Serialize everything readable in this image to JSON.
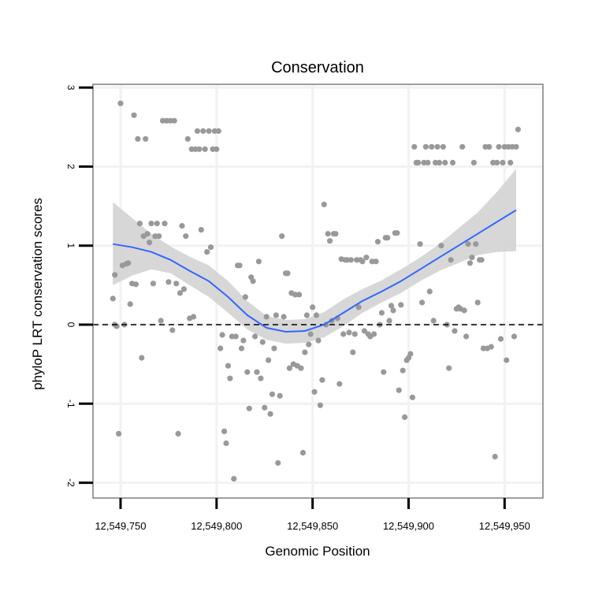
{
  "chart_data": {
    "type": "scatter",
    "title": "Conservation",
    "xlabel": "Genomic Position",
    "ylabel": "phyloP LRT conservation scores",
    "xlim": [
      12549743,
      12549960
    ],
    "ylim": [
      -2.18,
      3.0
    ],
    "xticks": [
      12549750,
      12549800,
      12549850,
      12549900,
      12549950
    ],
    "xtick_labels": [
      "12,549,750",
      "12,549,800",
      "12,549,850",
      "12,549,900",
      "12,549,950"
    ],
    "yticks": [
      -2,
      -1,
      0,
      1,
      2,
      3
    ],
    "ytick_labels": [
      "-2",
      "-1",
      "0",
      "1",
      "2",
      "3"
    ],
    "reference_line": {
      "y": 0,
      "style": "dashed"
    },
    "colors": {
      "points": "#999999",
      "smooth": "#3366ff",
      "band": "#d3d3d3",
      "grid": "#f2f2f2",
      "frame": "#7f7f7f"
    },
    "points": [
      [
        12549746,
        0.33
      ],
      [
        12549747,
        0.63
      ],
      [
        12549747,
        0.0
      ],
      [
        12549748,
        -0.02
      ],
      [
        12549749,
        -1.38
      ],
      [
        12549750,
        2.8
      ],
      [
        12549751,
        0.75
      ],
      [
        12549752,
        0.0
      ],
      [
        12549753,
        0.77
      ],
      [
        12549754,
        0.78
      ],
      [
        12549755,
        0.26
      ],
      [
        12549756,
        0.52
      ],
      [
        12549757,
        2.65
      ],
      [
        12549758,
        0.51
      ],
      [
        12549759,
        2.35
      ],
      [
        12549760,
        1.28
      ],
      [
        12549761,
        -0.42
      ],
      [
        12549762,
        1.12
      ],
      [
        12549763,
        2.35
      ],
      [
        12549764,
        1.15
      ],
      [
        12549765,
        1.04
      ],
      [
        12549766,
        1.28
      ],
      [
        12549767,
        0.52
      ],
      [
        12549768,
        1.12
      ],
      [
        12549769,
        1.28
      ],
      [
        12549770,
        1.12
      ],
      [
        12549771,
        0.05
      ],
      [
        12549772,
        2.58
      ],
      [
        12549773,
        1.28
      ],
      [
        12549774,
        2.58
      ],
      [
        12549775,
        0.54
      ],
      [
        12549776,
        2.58
      ],
      [
        12549777,
        -0.07
      ],
      [
        12549778,
        2.58
      ],
      [
        12549779,
        0.52
      ],
      [
        12549780,
        -1.38
      ],
      [
        12549781,
        0.4
      ],
      [
        12549782,
        1.25
      ],
      [
        12549783,
        0.45
      ],
      [
        12549784,
        1.12
      ],
      [
        12549785,
        2.35
      ],
      [
        12549786,
        0.08
      ],
      [
        12549787,
        2.22
      ],
      [
        12549788,
        0.1
      ],
      [
        12549789,
        2.22
      ],
      [
        12549790,
        2.45
      ],
      [
        12549791,
        2.22
      ],
      [
        12549792,
        1.2
      ],
      [
        12549793,
        2.45
      ],
      [
        12549794,
        2.22
      ],
      [
        12549795,
        0.92
      ],
      [
        12549796,
        2.45
      ],
      [
        12549797,
        0.98
      ],
      [
        12549798,
        2.22
      ],
      [
        12549799,
        2.45
      ],
      [
        12549800,
        2.22
      ],
      [
        12549801,
        2.45
      ],
      [
        12549802,
        -0.3
      ],
      [
        12549803,
        -0.13
      ],
      [
        12549804,
        -1.35
      ],
      [
        12549805,
        -1.5
      ],
      [
        12549806,
        -0.52
      ],
      [
        12549807,
        -0.68
      ],
      [
        12549808,
        -0.15
      ],
      [
        12549809,
        -1.95
      ],
      [
        12549810,
        -0.15
      ],
      [
        12549811,
        0.75
      ],
      [
        12549812,
        0.75
      ],
      [
        12549813,
        -0.3
      ],
      [
        12549814,
        -0.2
      ],
      [
        12549815,
        0.35
      ],
      [
        12549816,
        -0.6
      ],
      [
        12549817,
        -1.06
      ],
      [
        12549818,
        0.6
      ],
      [
        12549819,
        0.55
      ],
      [
        12549820,
        -0.15
      ],
      [
        12549821,
        -0.6
      ],
      [
        12549822,
        0.8
      ],
      [
        12549823,
        -0.68
      ],
      [
        12549824,
        -0.22
      ],
      [
        12549825,
        -1.05
      ],
      [
        12549826,
        0.1
      ],
      [
        12549827,
        -0.45
      ],
      [
        12549828,
        -1.13
      ],
      [
        12549829,
        -0.88
      ],
      [
        12549830,
        -0.3
      ],
      [
        12549831,
        0.12
      ],
      [
        12549832,
        -1.75
      ],
      [
        12549833,
        -0.9
      ],
      [
        12549834,
        1.12
      ],
      [
        12549835,
        0.1
      ],
      [
        12549836,
        0.65
      ],
      [
        12549837,
        0.65
      ],
      [
        12549838,
        -0.55
      ],
      [
        12549839,
        0.4
      ],
      [
        12549840,
        -0.5
      ],
      [
        12549841,
        0.38
      ],
      [
        12549842,
        -0.52
      ],
      [
        12549843,
        0.38
      ],
      [
        12549844,
        -0.55
      ],
      [
        12549845,
        -1.62
      ],
      [
        12549846,
        -0.35
      ],
      [
        12549847,
        0.12
      ],
      [
        12549848,
        -0.25
      ],
      [
        12549849,
        -0.12
      ],
      [
        12549850,
        0.22
      ],
      [
        12549851,
        -0.85
      ],
      [
        12549852,
        0.12
      ],
      [
        12549853,
        -0.2
      ],
      [
        12549854,
        -1.02
      ],
      [
        12549855,
        -0.7
      ],
      [
        12549856,
        1.52
      ],
      [
        12549857,
        0.0
      ],
      [
        12549858,
        1.15
      ],
      [
        12549859,
        1.06
      ],
      [
        12549860,
        0.05
      ],
      [
        12549861,
        1.15
      ],
      [
        12549862,
        1.15
      ],
      [
        12549863,
        0.08
      ],
      [
        12549864,
        -0.75
      ],
      [
        12549865,
        0.83
      ],
      [
        12549866,
        -0.12
      ],
      [
        12549867,
        0.82
      ],
      [
        12549868,
        0.82
      ],
      [
        12549869,
        -0.1
      ],
      [
        12549870,
        0.82
      ],
      [
        12549871,
        -0.35
      ],
      [
        12549872,
        -0.12
      ],
      [
        12549873,
        0.82
      ],
      [
        12549874,
        0.22
      ],
      [
        12549875,
        0.82
      ],
      [
        12549876,
        0.8
      ],
      [
        12549877,
        -0.08
      ],
      [
        12549878,
        0.85
      ],
      [
        12549879,
        -0.12
      ],
      [
        12549880,
        -0.15
      ],
      [
        12549881,
        0.8
      ],
      [
        12549882,
        -0.12
      ],
      [
        12549883,
        0.8
      ],
      [
        12549884,
        1.05
      ],
      [
        12549885,
        0.0
      ],
      [
        12549886,
        0.15
      ],
      [
        12549887,
        -0.6
      ],
      [
        12549888,
        1.1
      ],
      [
        12549889,
        1.1
      ],
      [
        12549890,
        0.05
      ],
      [
        12549891,
        0.24
      ],
      [
        12549892,
        0.18
      ],
      [
        12549893,
        1.16
      ],
      [
        12549894,
        1.16
      ],
      [
        12549895,
        -0.83
      ],
      [
        12549896,
        0.25
      ],
      [
        12549897,
        -0.58
      ],
      [
        12549898,
        -1.17
      ],
      [
        12549899,
        -0.45
      ],
      [
        12549900,
        -0.42
      ],
      [
        12549901,
        -0.37
      ],
      [
        12549902,
        -0.92
      ],
      [
        12549903,
        2.25
      ],
      [
        12549904,
        2.05
      ],
      [
        12549905,
        2.05
      ],
      [
        12549906,
        1.02
      ],
      [
        12549907,
        0.28
      ],
      [
        12549908,
        2.05
      ],
      [
        12549909,
        2.25
      ],
      [
        12549910,
        2.05
      ],
      [
        12549911,
        0.42
      ],
      [
        12549912,
        2.25
      ],
      [
        12549913,
        0.05
      ],
      [
        12549914,
        2.05
      ],
      [
        12549915,
        2.25
      ],
      [
        12549916,
        2.05
      ],
      [
        12549917,
        1.0
      ],
      [
        12549918,
        2.25
      ],
      [
        12549919,
        2.05
      ],
      [
        12549920,
        0.0
      ],
      [
        12549921,
        -0.55
      ],
      [
        12549922,
        0.82
      ],
      [
        12549923,
        2.05
      ],
      [
        12549924,
        -0.08
      ],
      [
        12549925,
        0.2
      ],
      [
        12549926,
        0.22
      ],
      [
        12549927,
        0.2
      ],
      [
        12549928,
        2.25
      ],
      [
        12549929,
        0.18
      ],
      [
        12549930,
        -0.15
      ],
      [
        12549931,
        1.02
      ],
      [
        12549932,
        0.78
      ],
      [
        12549933,
        0.85
      ],
      [
        12549934,
        2.05
      ],
      [
        12549935,
        1.02
      ],
      [
        12549936,
        0.28
      ],
      [
        12549937,
        0.82
      ],
      [
        12549938,
        0.82
      ],
      [
        12549939,
        -0.3
      ],
      [
        12549940,
        2.25
      ],
      [
        12549941,
        -0.3
      ],
      [
        12549942,
        2.25
      ],
      [
        12549943,
        -0.28
      ],
      [
        12549944,
        2.05
      ],
      [
        12549945,
        -1.67
      ],
      [
        12549946,
        2.05
      ],
      [
        12549947,
        2.25
      ],
      [
        12549948,
        -0.18
      ],
      [
        12549949,
        2.05
      ],
      [
        12549950,
        2.25
      ],
      [
        12549951,
        -0.45
      ],
      [
        12549952,
        2.25
      ],
      [
        12549953,
        2.05
      ],
      [
        12549954,
        2.25
      ],
      [
        12549955,
        -0.15
      ],
      [
        12549956,
        2.25
      ],
      [
        12549957,
        2.47
      ]
    ],
    "smooth_line": {
      "x": [
        12549746,
        12549756,
        12549766,
        12549776,
        12549786,
        12549796,
        12549806,
        12549816,
        12549826,
        12549836,
        12549846,
        12549856,
        12549866,
        12549876,
        12549886,
        12549896,
        12549906,
        12549916,
        12549926,
        12549936,
        12549946,
        12549956
      ],
      "y": [
        1.02,
        0.98,
        0.92,
        0.82,
        0.68,
        0.55,
        0.35,
        0.12,
        -0.04,
        -0.09,
        -0.08,
        0.0,
        0.15,
        0.3,
        0.42,
        0.55,
        0.7,
        0.85,
        1.0,
        1.15,
        1.3,
        1.45
      ],
      "lower": [
        0.5,
        0.62,
        0.7,
        0.65,
        0.5,
        0.35,
        0.15,
        -0.06,
        -0.19,
        -0.24,
        -0.23,
        -0.16,
        -0.02,
        0.15,
        0.28,
        0.4,
        0.55,
        0.68,
        0.78,
        0.88,
        0.92,
        0.93
      ],
      "upper": [
        1.55,
        1.35,
        1.15,
        0.99,
        0.86,
        0.75,
        0.55,
        0.3,
        0.11,
        0.06,
        0.07,
        0.16,
        0.32,
        0.45,
        0.56,
        0.7,
        0.85,
        1.02,
        1.22,
        1.42,
        1.68,
        1.97
      ]
    }
  }
}
